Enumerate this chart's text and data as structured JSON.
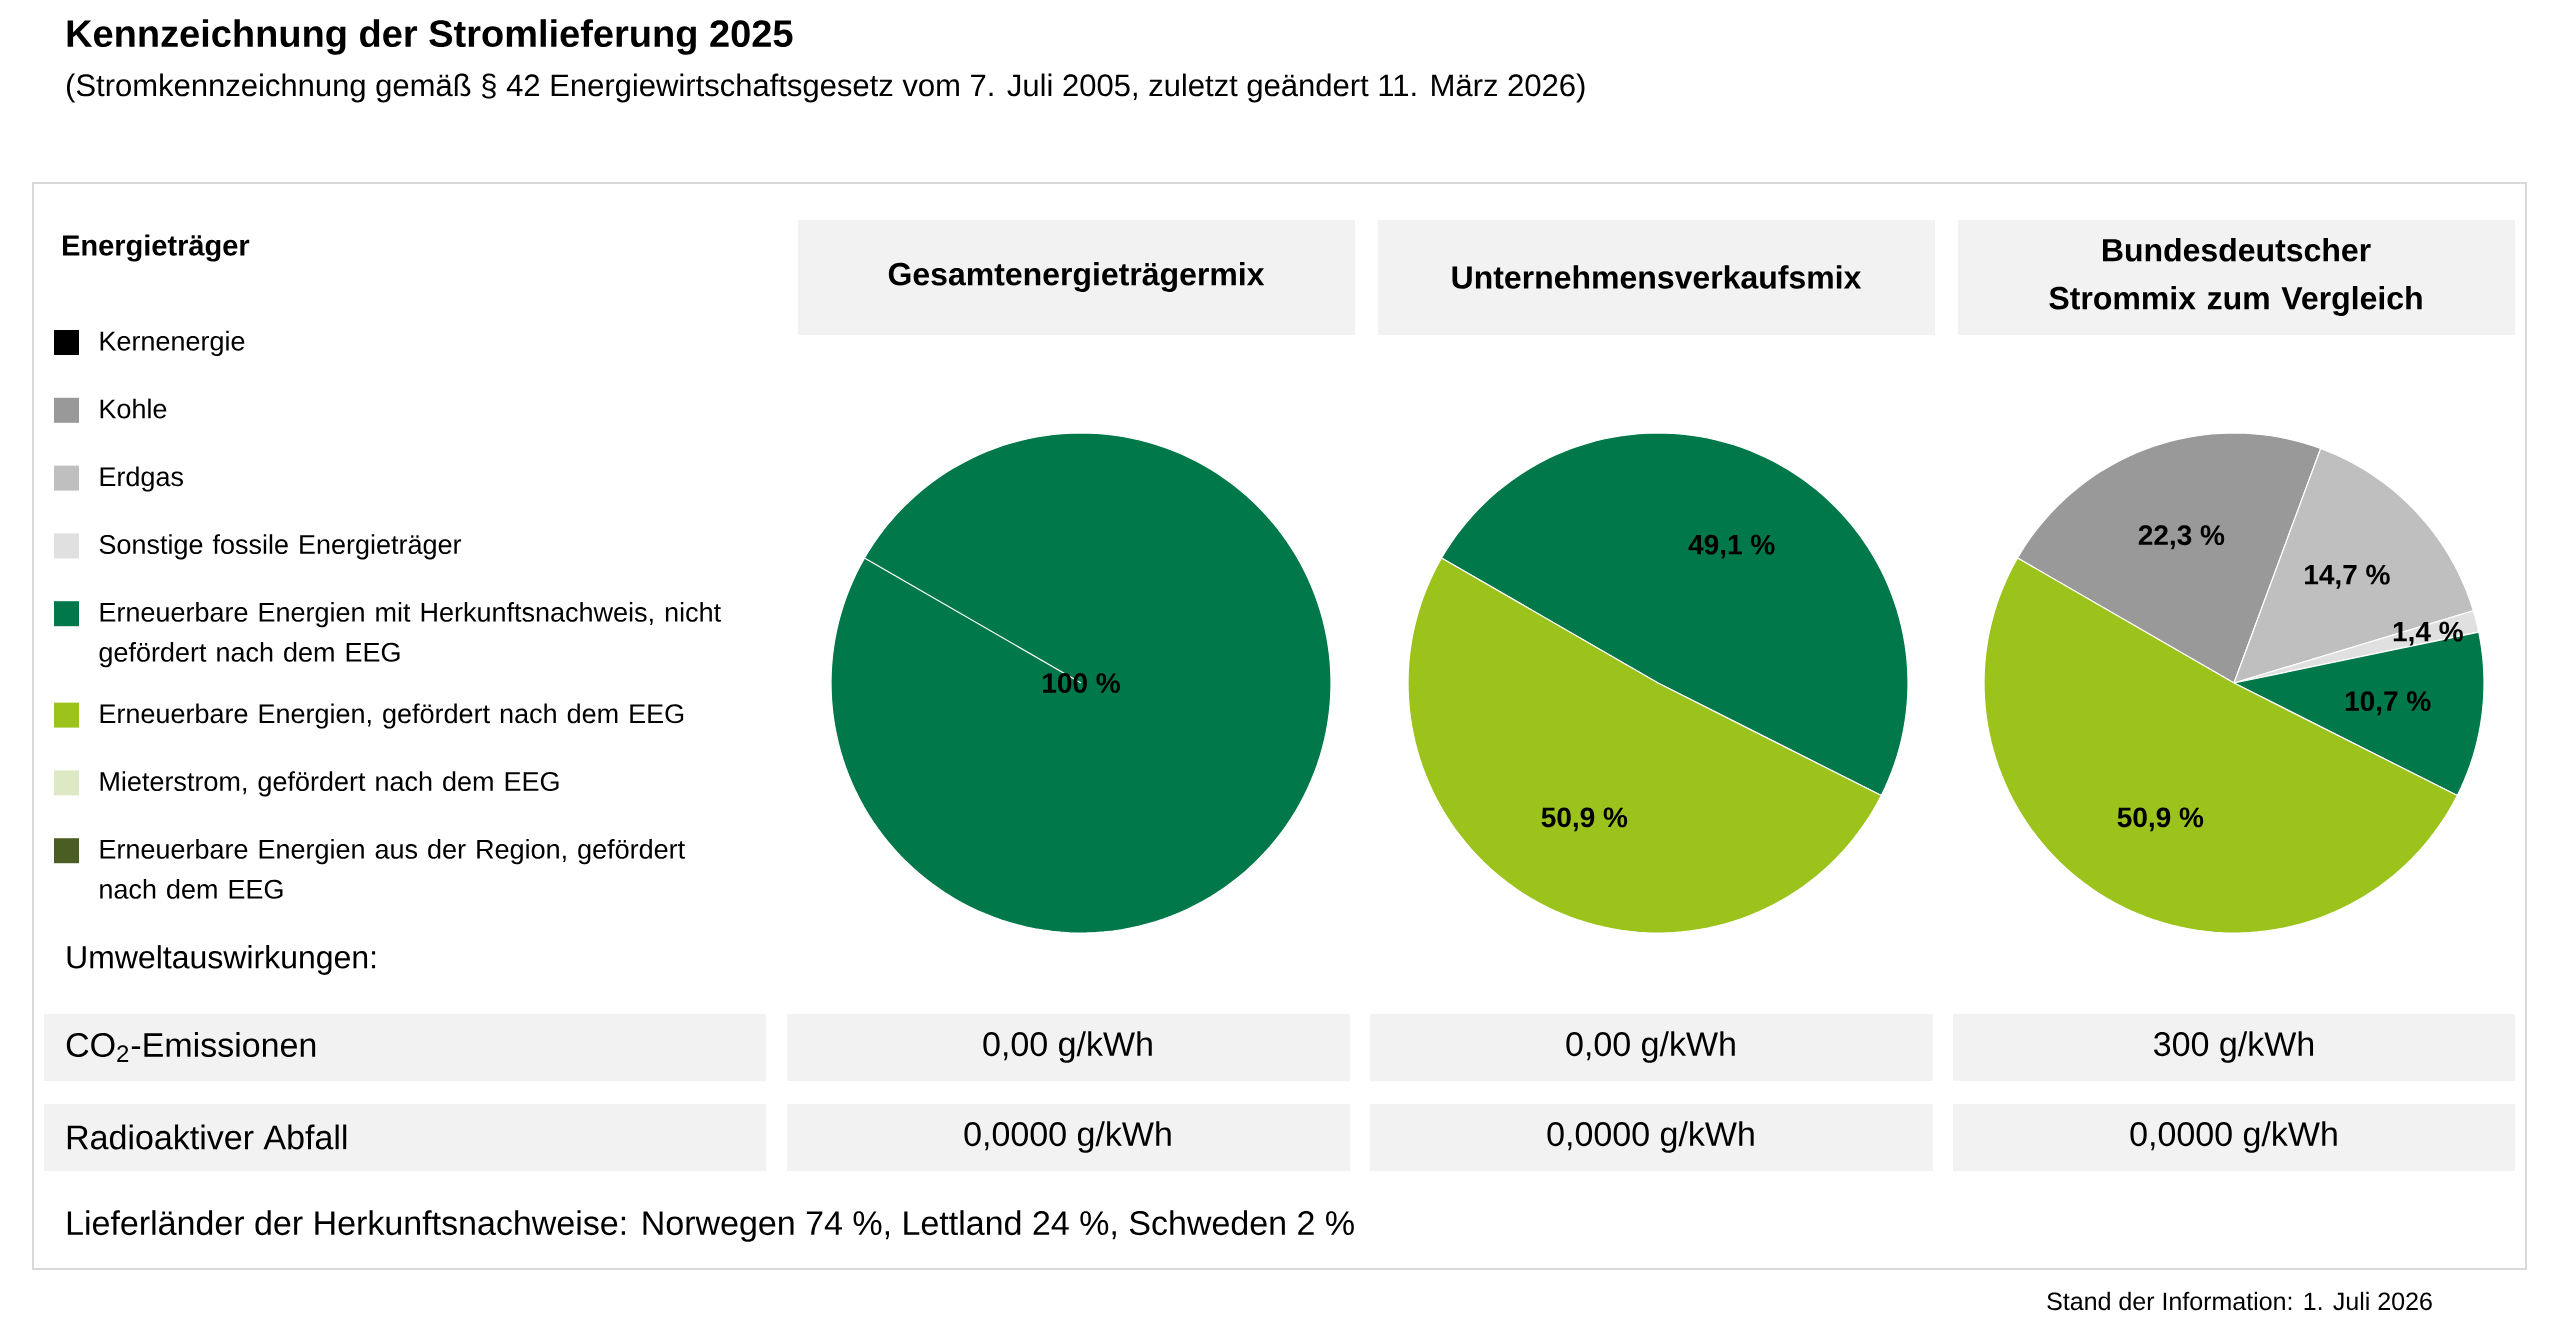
{
  "chart_data": [
    {
      "type": "other",
      "title": "Kennzeichnung der Stromlieferung 2025",
      "subtitle": "(Stromkennzeichnung gemäß § 42 Energiewirtschaftsgesetz vom 7. Juli 2005, zuletzt geändert 11. März 2026)"
    },
    {
      "type": "pie",
      "title": "Gesamtenergieträgermix",
      "legend": "left",
      "legend_title": "Energieträger",
      "categories": [
        "Kernenergie",
        "Kohle",
        "Erdgas",
        "Sonstige fossile Energieträger",
        "Erneuerbare Energien mit Herkunftsnachweis, nicht gefördert nach dem EEG",
        "Erneuerbare Energien, gefördert nach dem EEG",
        "Mieterstrom, gefördert nach dem EEG",
        "Erneuerbare Energien aus der Region, gefördert nach dem EEG"
      ],
      "colors": [
        "#000000",
        "#999999",
        "#bfbfbf",
        "#e0e0e0",
        "#00784a",
        "#9bc31c",
        "#dde8c4",
        "#4a5e23"
      ],
      "values": [
        0,
        0,
        0,
        0,
        100,
        0,
        0,
        0
      ],
      "value_labels": [
        null,
        null,
        null,
        null,
        "100 %",
        null,
        null,
        null
      ]
    },
    {
      "type": "pie",
      "title": "Unternehmensverkaufsmix",
      "colors": [
        "#000000",
        "#999999",
        "#bfbfbf",
        "#e0e0e0",
        "#00784a",
        "#9bc31c",
        "#dde8c4",
        "#4a5e23"
      ],
      "values": [
        0,
        0,
        0,
        0,
        49.1,
        50.9,
        0,
        0
      ],
      "value_labels": [
        null,
        null,
        null,
        null,
        "49,1 %",
        "50,9 %",
        null,
        null
      ]
    },
    {
      "type": "pie",
      "title": "Bundesdeutscher Strommix zum Vergleich",
      "colors": [
        "#000000",
        "#999999",
        "#bfbfbf",
        "#e0e0e0",
        "#00784a",
        "#9bc31c",
        "#dde8c4",
        "#4a5e23"
      ],
      "values": [
        0,
        22.3,
        14.7,
        1.4,
        10.7,
        50.9,
        0,
        0
      ],
      "value_labels": [
        null,
        "22,3 %",
        "14,7 %",
        "1,4 %",
        "10,7 %",
        "50,9 %",
        null,
        null
      ]
    },
    {
      "type": "other",
      "title": "Umweltauswirkungen:",
      "annotations": [
        "CO$_{2}$-Emissionen",
        "0,00 g/kWh",
        "0,00 g/kWh",
        "300 g/kWh",
        "Radioaktiver Abfall",
        "0,0000 g/kWh",
        "0,0000 g/kWh",
        "0,0000 g/kWh",
        "Lieferländer der Herkunftsnachweise: Norwegen 74 %, Lettland 24 %, Schweden 2 %",
        "Stand der Information: 1. Juli 2026"
      ]
    }
  ]
}
